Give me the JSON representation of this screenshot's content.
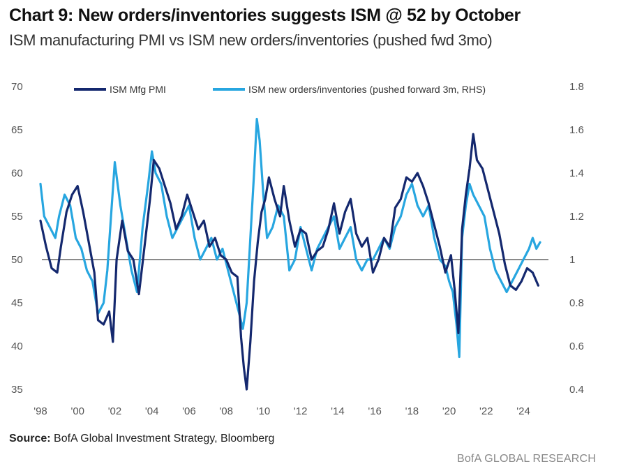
{
  "chart_data": {
    "type": "line",
    "title": "Chart 9: New orders/inventories suggests ISM @ 52 by October",
    "subtitle": "ISM manufacturing PMI vs ISM new orders/inventories (pushed fwd 3mo)",
    "xlabel": "",
    "ylabel": "",
    "xlim": [
      1998,
      2025.5
    ],
    "ylim": [
      35,
      70
    ],
    "y2lim": [
      0.4,
      1.8
    ],
    "x_ticks": [
      1998,
      2000,
      2002,
      2004,
      2006,
      2008,
      2010,
      2012,
      2014,
      2016,
      2018,
      2020,
      2022,
      2024
    ],
    "x_tick_labels": [
      "'98",
      "'00",
      "'02",
      "'04",
      "'06",
      "'08",
      "'10",
      "'12",
      "'14",
      "'16",
      "'18",
      "'20",
      "'22",
      "'24"
    ],
    "y_ticks": [
      35,
      40,
      45,
      50,
      55,
      60,
      65,
      70
    ],
    "y_tick_labels": [
      "35",
      "40",
      "45",
      "50",
      "55",
      "60",
      "65",
      "70"
    ],
    "y2_ticks": [
      0.4,
      0.6,
      0.8,
      1.0,
      1.2,
      1.4,
      1.6,
      1.8
    ],
    "y2_tick_labels": [
      "0.4",
      "0.6",
      "0.8",
      "1",
      "1.2",
      "1.4",
      "1.6",
      "1.8"
    ],
    "reference_line": 50,
    "grid": false,
    "legend_position": "top",
    "series": [
      {
        "name": "ISM Mfg PMI",
        "axis": "left",
        "color": "#14286e",
        "x": [
          1998.0,
          1998.3,
          1998.6,
          1998.9,
          1999.1,
          1999.4,
          1999.7,
          2000.0,
          2000.3,
          2000.6,
          2000.9,
          2001.1,
          2001.4,
          2001.7,
          2001.9,
          2002.1,
          2002.4,
          2002.7,
          2003.0,
          2003.3,
          2003.6,
          2003.9,
          2004.1,
          2004.4,
          2004.7,
          2005.0,
          2005.3,
          2005.6,
          2005.9,
          2006.2,
          2006.5,
          2006.8,
          2007.1,
          2007.4,
          2007.7,
          2008.0,
          2008.3,
          2008.6,
          2008.8,
          2008.95,
          2009.1,
          2009.3,
          2009.5,
          2009.7,
          2009.9,
          2010.1,
          2010.3,
          2010.6,
          2010.9,
          2011.1,
          2011.4,
          2011.7,
          2012.0,
          2012.3,
          2012.6,
          2012.9,
          2013.2,
          2013.5,
          2013.8,
          2014.1,
          2014.4,
          2014.7,
          2015.0,
          2015.3,
          2015.6,
          2015.9,
          2016.2,
          2016.5,
          2016.8,
          2017.1,
          2017.4,
          2017.7,
          2018.0,
          2018.3,
          2018.6,
          2018.9,
          2019.2,
          2019.5,
          2019.8,
          2020.1,
          2020.3,
          2020.5,
          2020.7,
          2020.9,
          2021.1,
          2021.3,
          2021.5,
          2021.8,
          2022.1,
          2022.4,
          2022.7,
          2023.0,
          2023.3,
          2023.6,
          2023.9,
          2024.2,
          2024.5,
          2024.8
        ],
        "values": [
          54.5,
          51.5,
          49.0,
          48.5,
          51.5,
          55.5,
          57.5,
          58.5,
          55.5,
          52.0,
          48.5,
          43.0,
          42.5,
          44.0,
          40.5,
          50.0,
          54.5,
          51.0,
          50.0,
          46.0,
          51.5,
          57.0,
          61.5,
          60.5,
          58.5,
          56.5,
          53.5,
          55.0,
          57.5,
          55.5,
          53.5,
          54.5,
          51.5,
          52.5,
          50.5,
          50.0,
          48.5,
          48.0,
          41.0,
          37.5,
          35.0,
          40.5,
          47.5,
          52.0,
          55.5,
          57.0,
          59.5,
          57.0,
          55.0,
          58.5,
          54.5,
          51.5,
          53.5,
          53.0,
          50.0,
          51.0,
          51.5,
          53.5,
          56.5,
          53.0,
          55.5,
          57.0,
          53.0,
          51.5,
          52.5,
          48.5,
          50.0,
          52.5,
          51.5,
          56.0,
          57.0,
          59.5,
          59.0,
          60.0,
          58.5,
          56.5,
          54.0,
          51.5,
          48.5,
          50.5,
          46.5,
          41.5,
          53.5,
          57.5,
          60.5,
          64.5,
          61.5,
          60.5,
          58.0,
          55.5,
          53.0,
          49.5,
          47.0,
          46.5,
          47.5,
          49.0,
          48.5,
          47.0
        ]
      },
      {
        "name": "ISM new orders/inventories (pushed forward 3m, RHS)",
        "axis": "right",
        "color": "#27a6e0",
        "x": [
          1998.0,
          1998.2,
          1998.5,
          1998.8,
          1999.0,
          1999.3,
          1999.6,
          1999.9,
          2000.2,
          2000.5,
          2000.8,
          2001.1,
          2001.4,
          2001.6,
          2001.8,
          2002.0,
          2002.3,
          2002.6,
          2002.9,
          2003.2,
          2003.5,
          2003.8,
          2004.0,
          2004.2,
          2004.5,
          2004.8,
          2005.1,
          2005.4,
          2005.7,
          2006.0,
          2006.3,
          2006.6,
          2006.9,
          2007.2,
          2007.5,
          2007.8,
          2008.1,
          2008.4,
          2008.7,
          2008.9,
          2009.1,
          2009.3,
          2009.5,
          2009.65,
          2009.8,
          2010.0,
          2010.2,
          2010.5,
          2010.8,
          2011.1,
          2011.4,
          2011.7,
          2012.0,
          2012.3,
          2012.6,
          2012.9,
          2013.2,
          2013.5,
          2013.8,
          2014.1,
          2014.4,
          2014.7,
          2015.0,
          2015.3,
          2015.6,
          2015.9,
          2016.2,
          2016.5,
          2016.8,
          2017.1,
          2017.4,
          2017.7,
          2018.0,
          2018.3,
          2018.6,
          2018.9,
          2019.2,
          2019.5,
          2019.8,
          2020.0,
          2020.2,
          2020.4,
          2020.55,
          2020.7,
          2020.9,
          2021.1,
          2021.3,
          2021.6,
          2021.9,
          2022.2,
          2022.5,
          2022.8,
          2023.1,
          2023.4,
          2023.7,
          2024.0,
          2024.3,
          2024.5,
          2024.7,
          2024.9
        ],
        "values": [
          1.35,
          1.2,
          1.15,
          1.1,
          1.2,
          1.3,
          1.25,
          1.1,
          1.05,
          0.95,
          0.9,
          0.75,
          0.8,
          0.95,
          1.2,
          1.45,
          1.25,
          1.1,
          0.95,
          0.85,
          1.15,
          1.35,
          1.5,
          1.4,
          1.35,
          1.2,
          1.1,
          1.15,
          1.2,
          1.25,
          1.1,
          1.0,
          1.05,
          1.1,
          1.0,
          1.05,
          0.95,
          0.85,
          0.75,
          0.68,
          0.8,
          1.1,
          1.4,
          1.65,
          1.55,
          1.3,
          1.1,
          1.15,
          1.25,
          1.2,
          0.95,
          1.0,
          1.15,
          1.05,
          0.95,
          1.05,
          1.1,
          1.15,
          1.2,
          1.05,
          1.1,
          1.15,
          1.0,
          0.95,
          1.0,
          1.0,
          1.05,
          1.1,
          1.05,
          1.15,
          1.2,
          1.3,
          1.35,
          1.25,
          1.2,
          1.25,
          1.1,
          1.0,
          0.97,
          0.9,
          0.85,
          0.7,
          0.55,
          1.1,
          1.25,
          1.35,
          1.3,
          1.25,
          1.2,
          1.05,
          0.95,
          0.9,
          0.85,
          0.9,
          0.95,
          1.0,
          1.05,
          1.1,
          1.05,
          1.08
        ]
      }
    ]
  },
  "footer": {
    "source_label": "Source:",
    "source_text": " BofA Global Investment Strategy, Bloomberg",
    "branding": "BofA GLOBAL RESEARCH"
  }
}
